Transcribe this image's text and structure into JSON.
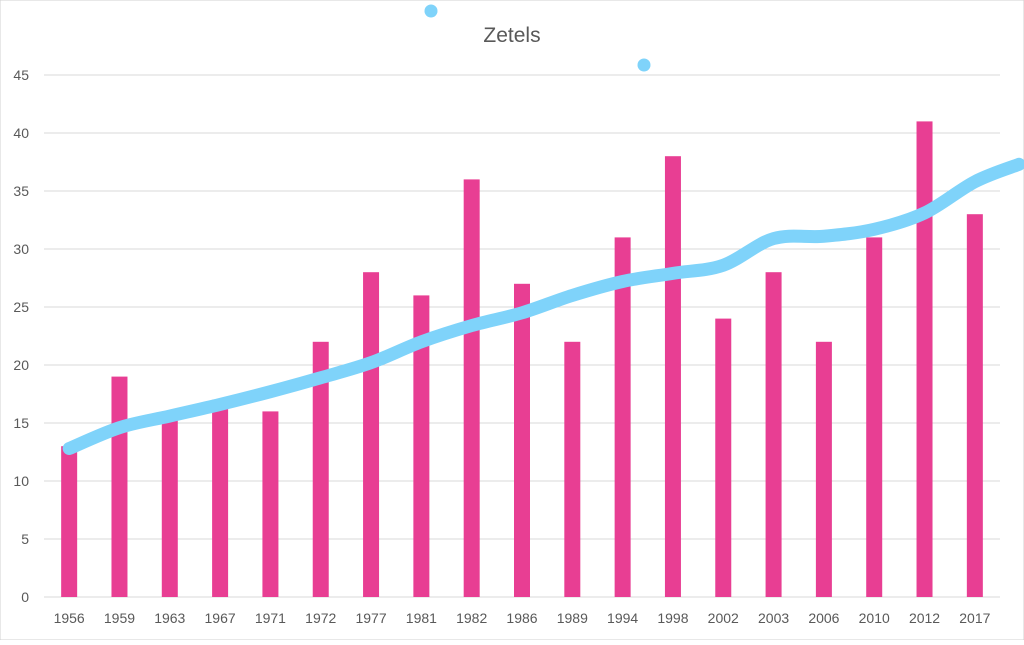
{
  "chart_data": {
    "type": "bar",
    "title": "Zetels",
    "xlabel": "",
    "ylabel": "",
    "ylim": [
      0,
      45
    ],
    "yticks": [
      "0",
      "5",
      "10",
      "15",
      "20",
      "25",
      "30",
      "35",
      "40",
      "45"
    ],
    "grid": true,
    "categories": [
      "1956",
      "1959",
      "1963",
      "1967",
      "1971",
      "1972",
      "1977",
      "1981",
      "1982",
      "1986",
      "1989",
      "1994",
      "1998",
      "2002",
      "2003",
      "2006",
      "2010",
      "2012",
      "2017"
    ],
    "series": [
      {
        "type": "bar",
        "values": [
          13,
          19,
          16,
          17,
          16,
          22,
          28,
          26,
          36,
          27,
          22,
          31,
          38,
          24,
          28,
          22,
          31,
          41,
          33
        ]
      },
      {
        "type": "line",
        "values": [
          12.8,
          14.6,
          15.6,
          16.6,
          17.7,
          18.9,
          20.2,
          22.0,
          23.4,
          24.5,
          26.0,
          27.2,
          27.9,
          28.6,
          30.9,
          31.1,
          31.7,
          33.1,
          35.8
        ]
      }
    ],
    "line_end_value": 37.3,
    "colors": {
      "bar": "#E83E93",
      "line": "#7FD3FA",
      "grid": "#D9D9D9",
      "tick_text": "#595959",
      "title_text": "#595959"
    }
  }
}
